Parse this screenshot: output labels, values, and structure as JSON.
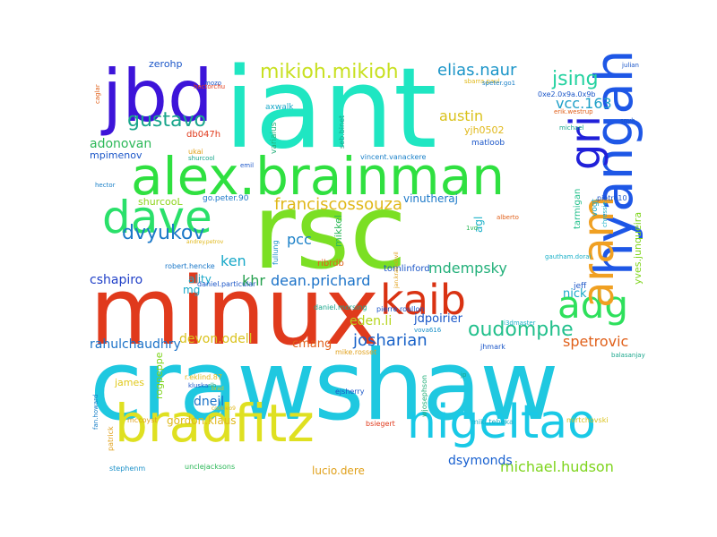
{
  "words": [
    {
      "text": "crawshaw",
      "color": "#1fc8e0"
    },
    {
      "text": "minux",
      "color": "#e03a1c"
    },
    {
      "text": "rsc",
      "color": "#7bdf24"
    },
    {
      "text": "iant",
      "color": "#1fe6c2"
    },
    {
      "text": "bradfitz",
      "color": "#dfe021"
    },
    {
      "text": "alex.brainman",
      "color": "#2fe040"
    },
    {
      "text": "nigeltao",
      "color": "#19c9e6"
    },
    {
      "text": "hyangah",
      "color": "#1e57e6"
    },
    {
      "text": "jbd",
      "color": "#3d14d9"
    },
    {
      "text": "dave",
      "color": "#2ae06a"
    },
    {
      "text": "kaib",
      "color": "#d93212"
    },
    {
      "text": "adg",
      "color": "#2ee05c"
    },
    {
      "text": "aram",
      "color": "#f0a022"
    },
    {
      "text": "gri",
      "color": "#2020d9"
    },
    {
      "text": "mikioh.mikioh",
      "color": "#c8e021"
    },
    {
      "text": "elias.naur",
      "color": "#1b95c8"
    },
    {
      "text": "jsing",
      "color": "#24d2a0"
    },
    {
      "text": "gustavo",
      "color": "#1aa68c"
    },
    {
      "text": "franciscossouza",
      "color": "#e0b81a"
    },
    {
      "text": "dvyukov",
      "color": "#1b78c8"
    },
    {
      "text": "mdempsky",
      "color": "#23b07a"
    },
    {
      "text": "oudomphe",
      "color": "#22c08c"
    },
    {
      "text": "josharian",
      "color": "#1962c8"
    },
    {
      "text": "michael.hudson",
      "color": "#7ed41c"
    },
    {
      "text": "spetrovic",
      "color": "#e0601a"
    },
    {
      "text": "austin",
      "color": "#dac21c"
    },
    {
      "text": "vcc.163",
      "color": "#1fa0c8"
    },
    {
      "text": "adonovan",
      "color": "#2cb858"
    },
    {
      "text": "pcc",
      "color": "#1a80c8"
    },
    {
      "text": "ken",
      "color": "#18a8c8"
    },
    {
      "text": "khr",
      "color": "#25a04e"
    },
    {
      "text": "dean.prichard",
      "color": "#1b72c8"
    },
    {
      "text": "cshapiro",
      "color": "#2040c8"
    },
    {
      "text": "devon.odell",
      "color": "#dac21c"
    },
    {
      "text": "cmang",
      "color": "#e0601a"
    },
    {
      "text": "rahulchaudhry",
      "color": "#1b72c8"
    },
    {
      "text": "eden.li",
      "color": "#b6d41c"
    },
    {
      "text": "jdpoirier",
      "color": "#1856c8"
    },
    {
      "text": "nick",
      "color": "#18a8c8"
    },
    {
      "text": "dsymonds",
      "color": "#1860d0"
    },
    {
      "text": "lucio.dere",
      "color": "#e0a01a"
    },
    {
      "text": "gordon.klaus",
      "color": "#e0b81a"
    },
    {
      "text": "dneil",
      "color": "#1b72c8"
    },
    {
      "text": "james",
      "color": "#e0c81a"
    },
    {
      "text": "rogpeppe",
      "color": "#7ed41c"
    },
    {
      "text": "vinutheraj",
      "color": "#1b78c8"
    },
    {
      "text": "agl",
      "color": "#1ab0c8"
    },
    {
      "text": "mikkel",
      "color": "#2cb858"
    },
    {
      "text": "tomlinford",
      "color": "#1b56c8"
    },
    {
      "text": "ality",
      "color": "#18a8c8"
    },
    {
      "text": "mg",
      "color": "#18a8c8"
    },
    {
      "text": "shurcooL",
      "color": "#8ed41c"
    },
    {
      "text": "ribrdb",
      "color": "#e0601a"
    },
    {
      "text": "yjh0502",
      "color": "#e0b81a"
    },
    {
      "text": "tarmigan",
      "color": "#24c08c"
    },
    {
      "text": "vogt",
      "color": "#18a8c8"
    },
    {
      "text": "yves.junqueira",
      "color": "#7ed41c"
    },
    {
      "text": "jeff",
      "color": "#1b56c8"
    },
    {
      "text": "zerohp",
      "color": "#1b56c8"
    },
    {
      "text": "mpimenov",
      "color": "#1b56c8"
    },
    {
      "text": "db047h",
      "color": "#e03a1c"
    },
    {
      "text": "axwalk",
      "color": "#18a8c8"
    },
    {
      "text": "variaius",
      "color": "#24b07a"
    },
    {
      "text": "seb.binet",
      "color": "#1aa68c"
    },
    {
      "text": "matloob",
      "color": "#1b56c8"
    },
    {
      "text": "vincent.vanackere",
      "color": "#1a80c8"
    },
    {
      "text": "spetrovic",
      "color": "#e0601a"
    },
    {
      "text": "go.peter.90",
      "color": "#1b78c8"
    },
    {
      "text": "daniel.particular",
      "color": "#1b56c8"
    },
    {
      "text": "daniel.morsing",
      "color": "#1aa68c"
    },
    {
      "text": "pierre.roullon",
      "color": "#1b56c8"
    },
    {
      "text": "mike.rosset",
      "color": "#e0a01a"
    },
    {
      "text": "balasanjay",
      "color": "#1aa68c"
    },
    {
      "text": "jhmark",
      "color": "#1b56c8"
    },
    {
      "text": "miki.tebeka",
      "color": "#1ab0c8"
    },
    {
      "text": "mirtchovski",
      "color": "#dac21c"
    },
    {
      "text": "bsiegert",
      "color": "#e03a1c"
    },
    {
      "text": "ejsherry",
      "color": "#1b56c8"
    },
    {
      "text": "wjosephson",
      "color": "#24b07a"
    },
    {
      "text": "unclejacksons",
      "color": "#2cb858"
    },
    {
      "text": "stephenm",
      "color": "#1a90c8"
    },
    {
      "text": "mccoyst",
      "color": "#e0a01a"
    },
    {
      "text": "patrick",
      "color": "#e0a01a"
    },
    {
      "text": "fan.howard",
      "color": "#1a80c8"
    },
    {
      "text": "r.eklind.87",
      "color": "#e0b81a"
    },
    {
      "text": "rlh",
      "color": "#1aa68c"
    },
    {
      "text": "kluska",
      "color": "#1b56c8"
    },
    {
      "text": "brad",
      "color": "#e0c81a"
    },
    {
      "text": "robert.hencke",
      "color": "#1b78c8"
    },
    {
      "text": "andrey.petrov",
      "color": "#e0b81a"
    },
    {
      "text": "fullung",
      "color": "#1a90c8"
    },
    {
      "text": "jan.kratochvil",
      "color": "#e0a01a"
    },
    {
      "text": "i3dmaster",
      "color": "#1ab0c8"
    },
    {
      "text": "sbarra.paul",
      "color": "#e0b81a"
    },
    {
      "text": "vova616",
      "color": "#1a90c8"
    },
    {
      "text": "gautham.dorai",
      "color": "#1ab0c8"
    },
    {
      "text": "alberto",
      "color": "#e0601a"
    },
    {
      "text": "1vd",
      "color": "#2cb858"
    },
    {
      "text": "hector",
      "color": "#1a80c8"
    },
    {
      "text": "hectorchu",
      "color": "#e03a1c"
    },
    {
      "text": "pietro10",
      "color": "#1b56c8"
    },
    {
      "text": "chressie",
      "color": "#1ab0c8"
    },
    {
      "text": "caglar",
      "color": "#e0601a"
    },
    {
      "text": "mozo",
      "color": "#1b56c8"
    },
    {
      "text": "julian",
      "color": "#1b56c8"
    },
    {
      "text": "speter.go1",
      "color": "#1a80c8"
    },
    {
      "text": "0xe2.0x9a.0x9b",
      "color": "#1b56c8"
    },
    {
      "text": "erik.westrup",
      "color": "#e0601a"
    },
    {
      "text": "snyh",
      "color": "#1b56c8"
    },
    {
      "text": "michael",
      "color": "#1aa68c"
    },
    {
      "text": "ukai",
      "color": "#e0a01a"
    },
    {
      "text": "shurcool",
      "color": "#1aa68c"
    },
    {
      "text": "emil",
      "color": "#1b56c8"
    },
    {
      "text": "jp",
      "color": "#1aa68c"
    },
    {
      "text": "cookieo9",
      "color": "#e0b81a"
    }
  ]
}
